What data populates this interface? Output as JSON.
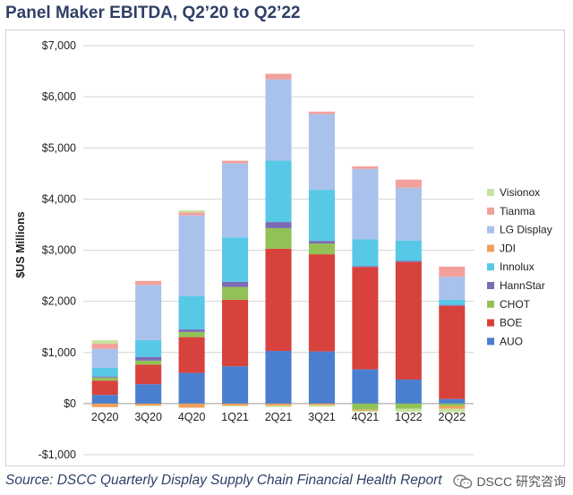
{
  "title": "Panel Maker EBITDA, Q2’20 to Q2’22",
  "source": "Source: DSCC Quarterly Display Supply Chain Financial Health Report",
  "watermark": {
    "icon": "wechat-icon",
    "text": "DSCC 研究咨询"
  },
  "colors": {
    "Visionox": "#c9e3a0",
    "Tianma": "#f2a09c",
    "LG Display": "#a9c2ec",
    "JDI": "#f0a05c",
    "Innolux": "#57c8e6",
    "HannStar": "#7c6bb3",
    "CHOT": "#92c257",
    "BOE": "#d8423c",
    "AUO": "#4a7fd0"
  },
  "chart_data": {
    "type": "bar",
    "stacked": true,
    "ylabel": "$US Millions",
    "xlabel": "",
    "ylim": [
      -1000,
      7000
    ],
    "yticks": [
      -1000,
      0,
      1000,
      2000,
      3000,
      4000,
      5000,
      6000,
      7000
    ],
    "ytick_labels": [
      "-$1,000",
      "$0",
      "$1,000",
      "$2,000",
      "$3,000",
      "$4,000",
      "$5,000",
      "$6,000",
      "$7,000"
    ],
    "grid": true,
    "legend_position": "right",
    "categories": [
      "2Q20",
      "3Q20",
      "4Q20",
      "1Q21",
      "2Q21",
      "3Q21",
      "4Q21",
      "1Q22",
      "2Q22"
    ],
    "series": [
      {
        "name": "AUO",
        "values": [
          170,
          380,
          600,
          730,
          1030,
          1020,
          670,
          470,
          90
        ]
      },
      {
        "name": "BOE",
        "values": [
          280,
          380,
          700,
          1300,
          2000,
          1900,
          2000,
          2300,
          1820
        ]
      },
      {
        "name": "CHOT",
        "values": [
          60,
          80,
          100,
          250,
          400,
          210,
          -120,
          -100,
          -50
        ]
      },
      {
        "name": "HannStar",
        "values": [
          20,
          70,
          50,
          100,
          120,
          50,
          20,
          20,
          20
        ]
      },
      {
        "name": "Innolux",
        "values": [
          170,
          330,
          650,
          870,
          1200,
          1000,
          520,
          400,
          100
        ]
      },
      {
        "name": "JDI",
        "values": [
          -70,
          -40,
          -80,
          -40,
          -40,
          -30,
          -20,
          0,
          -50
        ]
      },
      {
        "name": "LG Display",
        "values": [
          370,
          1080,
          1580,
          1450,
          1590,
          1480,
          1380,
          1030,
          450
        ]
      },
      {
        "name": "Tianma",
        "values": [
          100,
          80,
          60,
          50,
          110,
          50,
          50,
          160,
          200
        ]
      },
      {
        "name": "Visionox",
        "values": [
          70,
          -10,
          40,
          -15,
          -30,
          -30,
          -20,
          -60,
          -70
        ]
      }
    ],
    "legend_order": [
      "Visionox",
      "Tianma",
      "LG Display",
      "JDI",
      "Innolux",
      "HannStar",
      "CHOT",
      "BOE",
      "AUO"
    ]
  }
}
